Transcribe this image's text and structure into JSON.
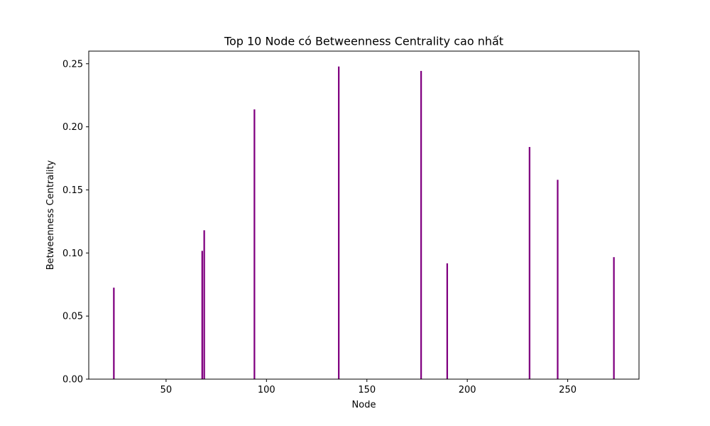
{
  "chart_data": {
    "type": "bar",
    "title": "Top 10 Node có Betweenness Centrality cao nhất",
    "xlabel": "Node",
    "ylabel": "Betweenness Centrality",
    "x": [
      24,
      68,
      69,
      94,
      136,
      177,
      190,
      231,
      245,
      273
    ],
    "values": [
      0.0725,
      0.1017,
      0.118,
      0.2138,
      0.2478,
      0.2443,
      0.0918,
      0.184,
      0.158,
      0.0967
    ],
    "xlim": [
      11.5,
      285.5
    ],
    "ylim": [
      0,
      0.26
    ],
    "xticks": [
      50,
      100,
      150,
      200,
      250
    ],
    "yticks": [
      0.0,
      0.05,
      0.1,
      0.15,
      0.2,
      0.25
    ],
    "xtick_labels": [
      "50",
      "100",
      "150",
      "200",
      "250"
    ],
    "ytick_labels": [
      "0.00",
      "0.05",
      "0.10",
      "0.15",
      "0.20",
      "0.25"
    ],
    "bar_color": "#800080",
    "grid": false,
    "legend": false
  }
}
